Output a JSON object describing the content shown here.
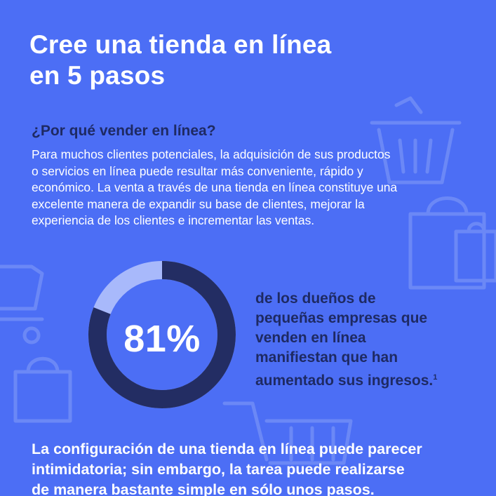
{
  "title": {
    "line1": "Cree una tienda en línea",
    "line2": "en 5 pasos"
  },
  "why": {
    "heading": "¿Por qué vender en línea?",
    "lines": [
      "Para muchos clientes potenciales, la adquisición de sus productos",
      "o servicios en línea puede resultar más conveniente, rápido y",
      "económico. La venta a través de una tienda en línea constituye una",
      "excelente manera de expandir su base de clientes, mejorar la",
      "experiencia de los clientes e incrementar las ventas."
    ]
  },
  "stat": {
    "percent_label": "81%",
    "percent_value": 81,
    "lines": [
      "de los dueños de",
      "pequeñas empresas que",
      "venden en línea",
      "manifiestan que han",
      "aumentado sus ingresos."
    ],
    "footnote": "1"
  },
  "closing": {
    "lines": [
      "La configuración de una tienda en línea puede parecer",
      "intimidatoria; sin embargo, la tarea puede realizarse",
      "de manera bastante simple en sólo unos pasos."
    ]
  },
  "colors": {
    "background": "#4C6EF5",
    "ring_filled": "#232D63",
    "ring_remaining": "#A8B9FB",
    "accent_text": "#1E2A63",
    "decor_stroke": "#6E8BF7"
  },
  "decor_icons": [
    "shopping-basket-icon",
    "shopping-bag-icon",
    "shopping-cart-icon"
  ]
}
